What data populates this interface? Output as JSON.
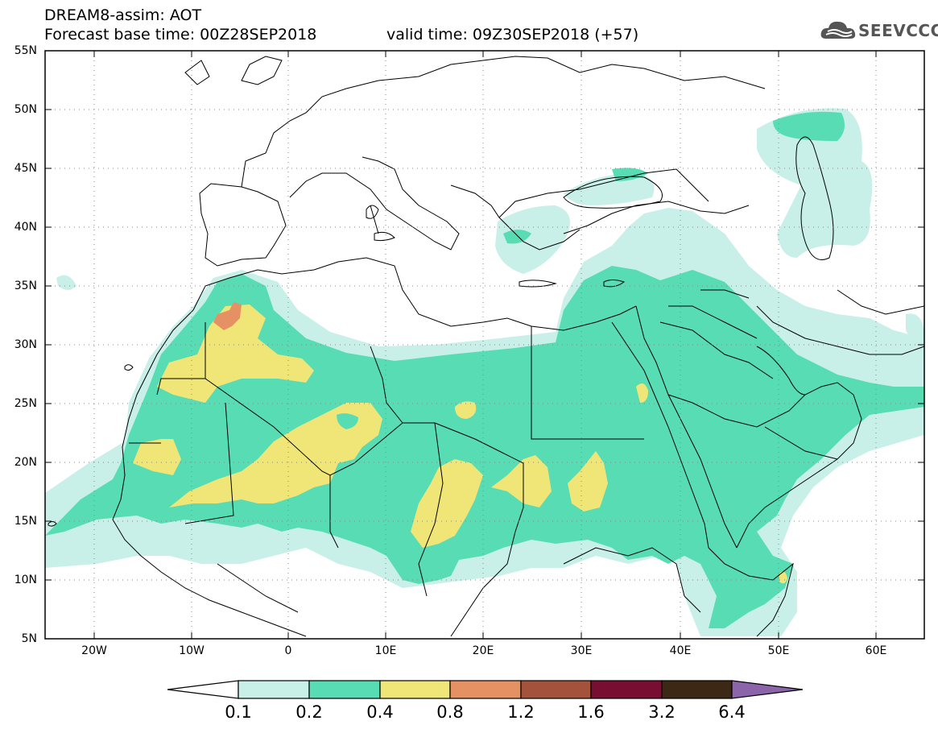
{
  "header": {
    "title": "DREAM8-assim: AOT",
    "base_time": "Forecast base time: 00Z28SEP2018",
    "valid_time": "valid time: 09Z30SEP2018 (+57)",
    "logo_text": "SEEVCCC",
    "logo_icon": "cloud-icon"
  },
  "axes": {
    "lat_ticks": [
      "55N",
      "50N",
      "45N",
      "40N",
      "35N",
      "30N",
      "25N",
      "20N",
      "15N",
      "10N",
      "5N"
    ],
    "lon_ticks": [
      "20W",
      "10W",
      "0",
      "10E",
      "20E",
      "30E",
      "40E",
      "50E",
      "60E"
    ]
  },
  "colorbar": {
    "labels": [
      "0.1",
      "0.2",
      "0.4",
      "0.8",
      "1.2",
      "1.6",
      "3.2",
      "6.4"
    ],
    "colors": [
      "#c8f0e8",
      "#58dcb4",
      "#f0e678",
      "#e69164",
      "#a5523c",
      "#780f32",
      "#3c2814",
      "#8c64aa"
    ],
    "under_color": "#ffffff"
  },
  "colors": {
    "aot_0_1": "#c8f0e8",
    "aot_0_2": "#58dcb4",
    "aot_0_4": "#f0e678",
    "aot_0_8": "#e69164",
    "border": "#000000"
  }
}
